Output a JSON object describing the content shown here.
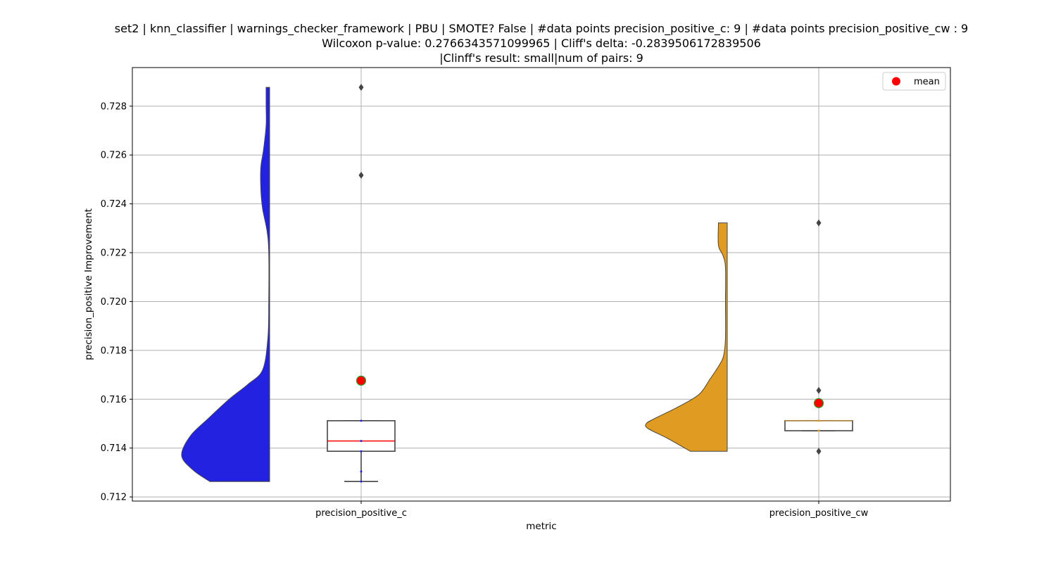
{
  "chart_data": {
    "type": "violin",
    "title_lines": [
      "set2 | knn_classifier | warnings_checker_framework | PBU | SMOTE? False | #data points precision_positive_c: 9 | #data points precision_positive_cw : 9",
      "Wilcoxon p-value: 0.2766343571099965 | Cliff's delta: -0.2839506172839506",
      "|Clinff's result: small|num of pairs: 9"
    ],
    "xlabel": "metric",
    "ylabel": "precision_positive Improvement",
    "ylim": [
      0.71183,
      0.72958
    ],
    "yticks": [
      0.712,
      0.714,
      0.716,
      0.718,
      0.72,
      0.722,
      0.724,
      0.726,
      0.728
    ],
    "ytick_labels": [
      "0.712",
      "0.714",
      "0.716",
      "0.718",
      "0.720",
      "0.722",
      "0.724",
      "0.726",
      "0.728"
    ],
    "categories": [
      "precision_positive_c",
      "precision_positive_cw"
    ],
    "grid": true,
    "legend": {
      "position": "top-right",
      "entries": [
        {
          "label": "mean",
          "color": "#ff0000"
        }
      ]
    },
    "colors": {
      "violin_c": "#2222e0",
      "violin_cw": "#e09c22",
      "box_edge": "#444444",
      "median": "#ff0000",
      "mean_marker": "#ff0000",
      "mean_edge": "#2a9d2a",
      "grid": "#b0b0b0"
    },
    "series": [
      {
        "violin": {
          "min": 0.71263,
          "max": 0.72877,
          "density": [
            [
              0.71263,
              0.68
            ],
            [
              0.7131,
              0.87
            ],
            [
              0.7137,
              1.0
            ],
            [
              0.7145,
              0.9
            ],
            [
              0.7152,
              0.7
            ],
            [
              0.716,
              0.46
            ],
            [
              0.7166,
              0.25
            ],
            [
              0.7172,
              0.08
            ],
            [
              0.7185,
              0.02
            ],
            [
              0.72,
              0.01
            ],
            [
              0.722,
              0.01
            ],
            [
              0.7229,
              0.03
            ],
            [
              0.7238,
              0.08
            ],
            [
              0.7246,
              0.1
            ],
            [
              0.7255,
              0.1
            ],
            [
              0.7262,
              0.07
            ],
            [
              0.7272,
              0.04
            ],
            [
              0.728,
              0.04
            ],
            [
              0.72877,
              0.04
            ]
          ]
        },
        "box": {
          "q1": 0.71387,
          "median": 0.71429,
          "q3": 0.71512,
          "whisker_low": 0.71263,
          "whisker_high": 0.71512
        },
        "outliers": [
          0.72517,
          0.72877
        ],
        "mean": 0.71676,
        "points": [
          0.71263,
          0.71304,
          0.71387,
          0.71429,
          0.71512
        ]
      },
      {
        "violin": {
          "min": 0.71387,
          "max": 0.72322,
          "density": [
            [
              0.71387,
              0.42
            ],
            [
              0.7144,
              0.68
            ],
            [
              0.7148,
              0.9
            ],
            [
              0.715,
              0.92
            ],
            [
              0.7152,
              0.83
            ],
            [
              0.7157,
              0.55
            ],
            [
              0.7162,
              0.32
            ],
            [
              0.7168,
              0.2
            ],
            [
              0.7174,
              0.09
            ],
            [
              0.7178,
              0.04
            ],
            [
              0.7185,
              0.02
            ],
            [
              0.72,
              0.02
            ],
            [
              0.7214,
              0.02
            ],
            [
              0.7219,
              0.05
            ],
            [
              0.7223,
              0.1
            ],
            [
              0.72322,
              0.1
            ]
          ]
        },
        "box": {
          "q1": 0.71471,
          "median": 0.71512,
          "q3": 0.71512,
          "whisker_low": 0.71471,
          "whisker_high": 0.71512
        },
        "outliers": [
          0.71387,
          0.71636,
          0.72322
        ],
        "mean": 0.71584,
        "points": [
          0.71471,
          0.71512
        ]
      }
    ]
  }
}
